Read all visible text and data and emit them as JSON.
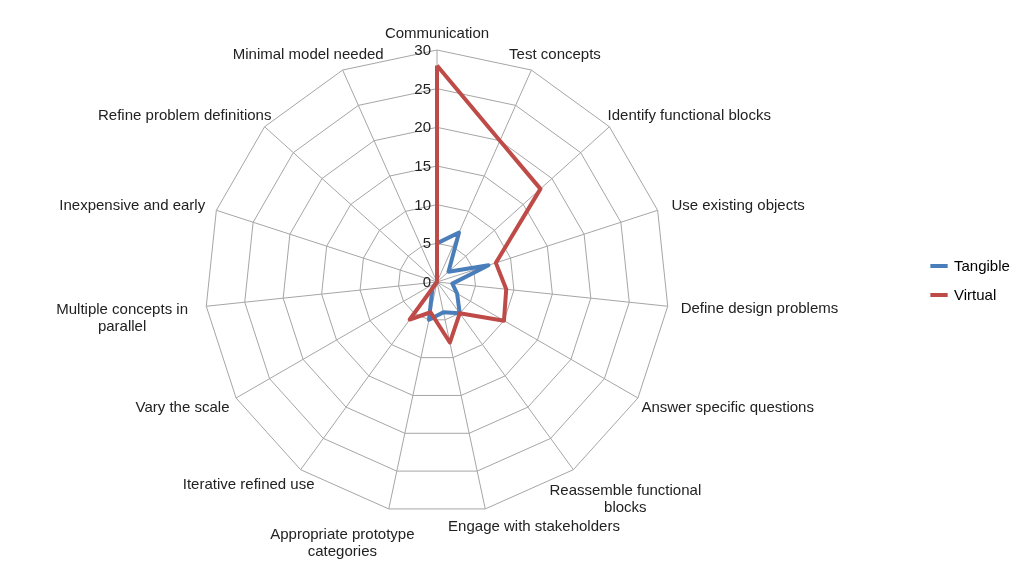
{
  "chart_data": {
    "type": "radar",
    "categories": [
      "Communication",
      "Test concepts",
      "Identify functional blocks",
      "Use existing objects",
      "Define design problems",
      "Answer specific questions",
      "Reassemble functional blocks",
      "Engage with stakeholders",
      "Appropriate prototype categories",
      "Iterative refined use",
      "Vary the scale",
      "Multiple concepts in parallel",
      "Inexpensive and early",
      "Refine problem definitions",
      "Minimal model needed"
    ],
    "series": [
      {
        "name": "Tangible",
        "color": "#4a7ebb",
        "values": [
          5,
          7,
          2,
          7,
          2,
          3,
          5,
          4,
          5,
          1,
          0,
          0,
          0,
          0,
          0
        ]
      },
      {
        "name": "Virtual",
        "color": "#be4b48",
        "values": [
          28,
          20,
          18,
          8,
          9,
          10,
          5,
          8,
          4,
          6,
          0,
          0,
          0,
          0,
          0
        ]
      }
    ],
    "ylim": [
      0,
      30
    ],
    "yticks": [
      0,
      5,
      10,
      15,
      20,
      25,
      30
    ],
    "grid": true,
    "legend": "right"
  }
}
